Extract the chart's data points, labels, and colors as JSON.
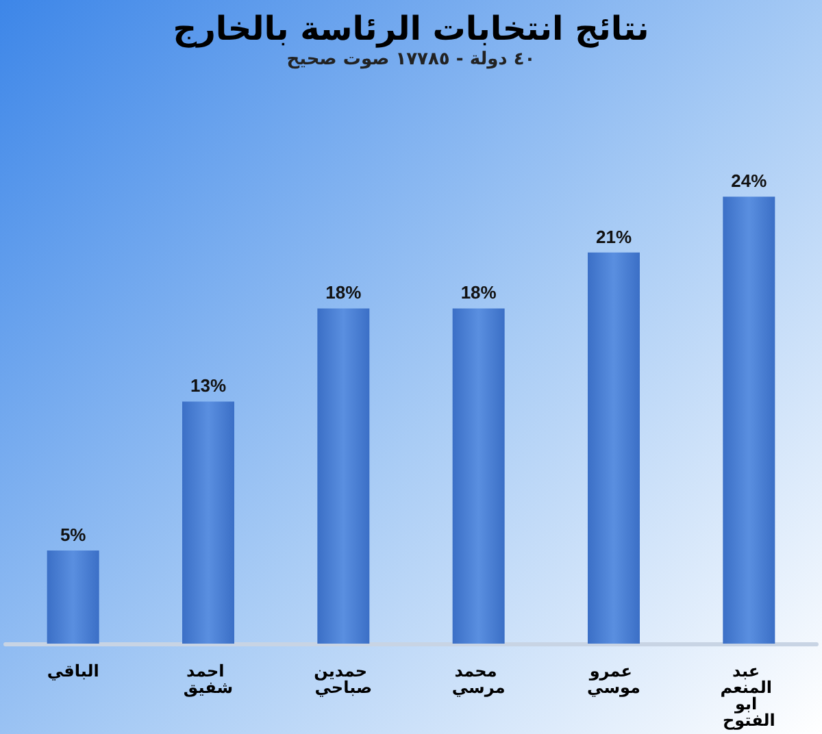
{
  "chart_data": {
    "type": "bar",
    "title": "نتائج انتخابات الرئاسة بالخارج",
    "subtitle": "٤٠ دولة - ١٧٧٨٥ صوت صحيح",
    "categories": [
      "الباقي",
      "احمد شفيق",
      "حمدين صباحي",
      "محمد مرسي",
      "عمرو موسي",
      "عبد المنعم ابو الفتوح"
    ],
    "values": [
      5,
      13,
      18,
      18,
      21,
      24
    ],
    "value_labels": [
      "5%",
      "13%",
      "18%",
      "18%",
      "21%",
      "24%"
    ],
    "color": "#3b6fc6"
  }
}
